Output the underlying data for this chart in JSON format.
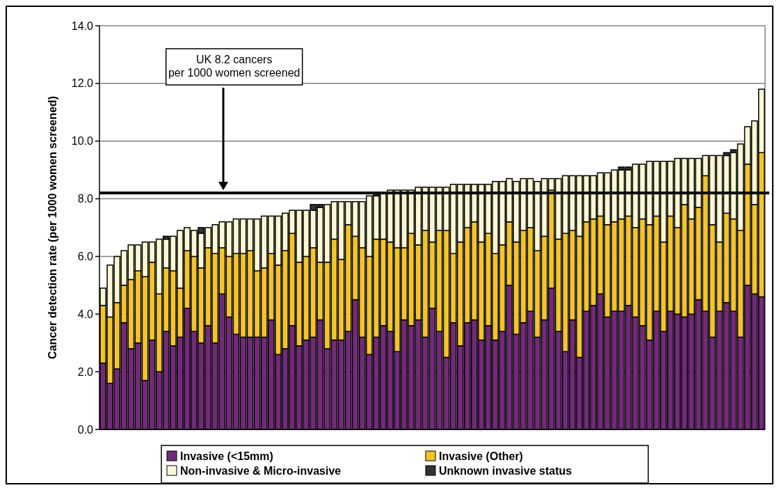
{
  "chart_data": {
    "type": "bar",
    "stacked": true,
    "ylabel": "Cancer detection rate (per 1000 women screened)",
    "categories": [
      null,
      null,
      null,
      null,
      null,
      null,
      null,
      null,
      null,
      null,
      null,
      null,
      null,
      null,
      null,
      null,
      null,
      null,
      null,
      null,
      null,
      null,
      null,
      null,
      null,
      null,
      null,
      null,
      null,
      null,
      null,
      null,
      null,
      null,
      null,
      null,
      null,
      null,
      null,
      null,
      null,
      null,
      null,
      null,
      null,
      null,
      null,
      null,
      null,
      null,
      null,
      null,
      null,
      null,
      null,
      null,
      null,
      null,
      null,
      null,
      null,
      null,
      null,
      null,
      null,
      null,
      null,
      null,
      null,
      null,
      null,
      null,
      null,
      null,
      null,
      null,
      null,
      null,
      null,
      null,
      null,
      null,
      null,
      null,
      null,
      null,
      null,
      null,
      null,
      null,
      null,
      null,
      null,
      null,
      null
    ],
    "ylim": [
      0,
      14
    ],
    "yticks": [
      {
        "value": 0,
        "label": "0.0"
      },
      {
        "value": 2,
        "label": "2.0"
      },
      {
        "value": 4,
        "label": "4.0"
      },
      {
        "value": 6,
        "label": "6.0"
      },
      {
        "value": 8,
        "label": "8.0"
      },
      {
        "value": 10,
        "label": "10.0"
      },
      {
        "value": 12,
        "label": "12.0"
      },
      {
        "value": 14,
        "label": "14.0"
      }
    ],
    "grid": "y",
    "legend": "bottom",
    "ref_lines": [
      {
        "axis": "y",
        "value": 8.2,
        "color": "#000000"
      }
    ],
    "annotations": [
      "UK 8.2 cancers\nper 1000 women screened"
    ],
    "series": [
      {
        "name": "Invasive (<15mm)",
        "color": "#722a7a",
        "values": [
          2.3,
          1.6,
          2.1,
          3.7,
          2.8,
          3.0,
          1.7,
          3.1,
          2.0,
          3.4,
          2.9,
          3.2,
          4.2,
          3.4,
          3.0,
          3.6,
          3.0,
          4.7,
          3.9,
          3.3,
          3.2,
          3.2,
          3.2,
          3.2,
          3.8,
          2.6,
          2.8,
          3.6,
          2.9,
          3.1,
          3.2,
          3.8,
          2.8,
          3.1,
          3.1,
          3.4,
          4.5,
          3.2,
          2.6,
          3.2,
          3.6,
          3.4,
          2.7,
          3.8,
          3.6,
          3.8,
          3.2,
          4.2,
          3.4,
          2.5,
          3.7,
          2.9,
          3.7,
          3.8,
          3.1,
          3.6,
          3.1,
          3.4,
          5.0,
          3.3,
          3.7,
          4.1,
          3.2,
          3.8,
          4.9,
          3.4,
          2.7,
          3.8,
          2.5,
          4.1,
          4.3,
          4.7,
          3.9,
          4.1,
          4.1,
          4.3,
          3.9,
          3.6,
          3.1,
          4.1,
          3.4,
          4.1,
          4.0,
          3.9,
          4.0,
          4.5,
          4.1,
          3.2,
          4.1,
          4.4,
          4.1,
          3.2,
          5.0,
          4.7,
          4.6
        ]
      },
      {
        "name": "Invasive (Other)",
        "color": "#f5c520",
        "values": [
          2.0,
          2.3,
          2.3,
          1.3,
          2.4,
          2.5,
          3.6,
          2.7,
          2.7,
          2.2,
          2.6,
          1.7,
          2.0,
          2.6,
          2.6,
          2.7,
          3.1,
          1.6,
          2.1,
          2.8,
          2.9,
          3.0,
          2.3,
          2.4,
          2.3,
          3.1,
          3.4,
          3.2,
          2.9,
          2.9,
          3.1,
          2.0,
          3.0,
          3.5,
          2.8,
          3.7,
          2.2,
          3.1,
          3.4,
          3.4,
          3.0,
          3.1,
          3.6,
          2.5,
          3.2,
          2.6,
          3.7,
          2.3,
          3.5,
          4.4,
          2.4,
          3.6,
          3.3,
          3.4,
          3.4,
          3.2,
          3.0,
          3.0,
          2.2,
          3.2,
          3.2,
          2.9,
          3.0,
          2.9,
          3.4,
          3.2,
          4.1,
          3.1,
          4.2,
          3.1,
          3.0,
          2.7,
          3.2,
          3.1,
          3.2,
          3.1,
          3.1,
          3.7,
          4.0,
          3.3,
          3.1,
          3.3,
          3.0,
          3.9,
          3.3,
          3.2,
          4.7,
          3.9,
          2.4,
          3.1,
          3.2,
          3.7,
          4.2,
          3.1,
          5.0
        ]
      },
      {
        "name": "Non-invasive & Micro-invasive",
        "color": "#fbf7d2",
        "values": [
          0.6,
          1.8,
          1.6,
          1.2,
          1.2,
          0.9,
          1.2,
          0.7,
          1.9,
          1.0,
          1.2,
          2.0,
          0.8,
          0.9,
          1.2,
          0.7,
          1.0,
          0.9,
          1.2,
          1.2,
          1.2,
          1.1,
          1.8,
          1.8,
          1.3,
          1.7,
          1.3,
          0.8,
          1.8,
          1.6,
          1.3,
          1.9,
          2.0,
          1.3,
          2.0,
          0.8,
          1.2,
          1.6,
          2.1,
          1.5,
          1.6,
          1.8,
          2.0,
          2.0,
          1.5,
          2.0,
          1.5,
          1.9,
          1.5,
          1.5,
          2.4,
          2.0,
          1.5,
          1.3,
          2.0,
          1.7,
          2.5,
          2.2,
          1.5,
          2.1,
          1.8,
          1.7,
          2.4,
          2.0,
          0.4,
          2.1,
          2.0,
          1.9,
          2.1,
          1.6,
          1.5,
          1.5,
          1.8,
          1.8,
          1.7,
          1.6,
          2.2,
          1.9,
          2.2,
          1.9,
          2.8,
          1.9,
          2.4,
          1.6,
          2.1,
          1.7,
          0.7,
          2.4,
          3.0,
          2.0,
          2.3,
          3.0,
          1.3,
          2.9,
          2.2
        ]
      },
      {
        "name": "Unknown invasive status",
        "color": "#333333",
        "values": [
          null,
          null,
          null,
          null,
          null,
          null,
          null,
          null,
          null,
          0.1,
          null,
          null,
          null,
          null,
          0.2,
          null,
          null,
          null,
          null,
          null,
          null,
          null,
          null,
          null,
          null,
          null,
          null,
          null,
          null,
          null,
          0.2,
          0.1,
          null,
          null,
          null,
          null,
          null,
          null,
          null,
          0.1,
          null,
          null,
          null,
          null,
          null,
          null,
          null,
          null,
          null,
          null,
          null,
          null,
          null,
          null,
          null,
          null,
          null,
          null,
          null,
          null,
          null,
          null,
          null,
          null,
          null,
          null,
          null,
          null,
          null,
          null,
          null,
          null,
          null,
          null,
          0.1,
          0.1,
          null,
          null,
          null,
          null,
          null,
          null,
          null,
          null,
          null,
          null,
          null,
          null,
          null,
          0.1,
          0.1,
          null,
          null,
          null,
          null
        ]
      }
    ]
  }
}
